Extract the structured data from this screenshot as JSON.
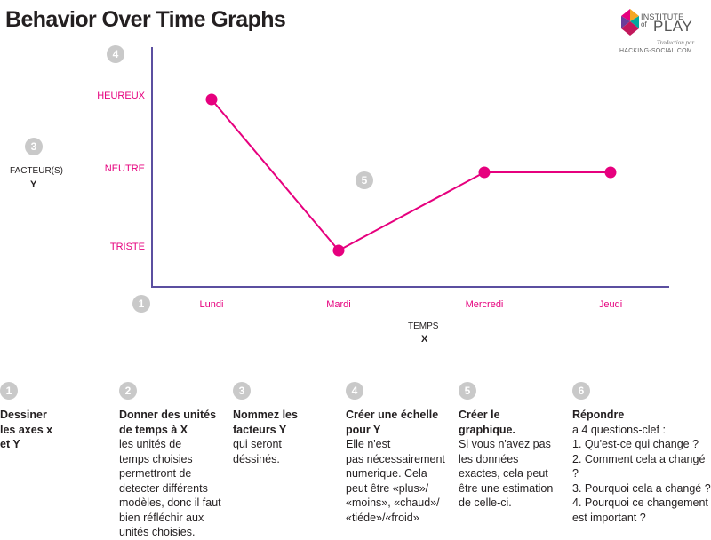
{
  "header": {
    "title": "Behavior Over Time Graphs",
    "logo": {
      "line1": "INSTITUTE",
      "line2": "of",
      "line3": "PLAY",
      "line4": "Traduction par",
      "line5": "HACKING-SOCIAL.COM"
    }
  },
  "chart_labels": {
    "y_title": "FACTEUR(S)",
    "y_var": "Y",
    "x_title": "TEMPS",
    "x_var": "X",
    "badges": {
      "origin": "1",
      "y_axis": "3",
      "scale": "4",
      "graph": "5"
    }
  },
  "colors": {
    "accent": "#e6007e",
    "axis": "#5b4fa0",
    "badge": "#c9c9c9",
    "text": "#231f20"
  },
  "chart_data": {
    "type": "line",
    "x": [
      "Lundi",
      "Mardi",
      "Mercredi",
      "Jeudi"
    ],
    "y_levels": [
      "TRISTE",
      "NEUTRE",
      "HEUREUX"
    ],
    "series": [
      {
        "values": [
          "HEUREUX",
          "TRISTE",
          "NEUTRE",
          "NEUTRE"
        ]
      }
    ],
    "xlabel": "TEMPS",
    "ylabel": "FACTEUR(S)",
    "grid": false
  },
  "steps": [
    {
      "num": "1",
      "head": "Dessiner\nles axes x\net Y",
      "body": ""
    },
    {
      "num": "2",
      "head": "Donner des unités\nde temps à X",
      "body": "les unités de\ntemps choisies\npermettront de\ndetecter différents\nmodèles, donc il faut\nbien réfléchir aux\nunités choisies."
    },
    {
      "num": "3",
      "head": "Nommez les\nfacteurs Y",
      "body": "qui seront\ndéssinés."
    },
    {
      "num": "4",
      "head": "Créer une échelle\npour Y",
      "body": "Elle n'est\npas nécessairement\nnumerique. Cela\npeut être  «plus»/\n«moins», «chaud»/\n«tiéde»/«froid»"
    },
    {
      "num": "5",
      "head": "Créer le\ngraphique.",
      "body": "Si vous n'avez pas\nles données\nexactes, cela peut\nêtre une estimation\nde celle-ci."
    },
    {
      "num": "6",
      "head": "Répondre",
      "body": "a 4 questions-clef :\n1. Qu'est-ce qui change ?\n2. Comment cela a changé ?\n3. Pourquoi cela a changé ?\n4. Pourquoi ce changement\nest important ?"
    }
  ]
}
